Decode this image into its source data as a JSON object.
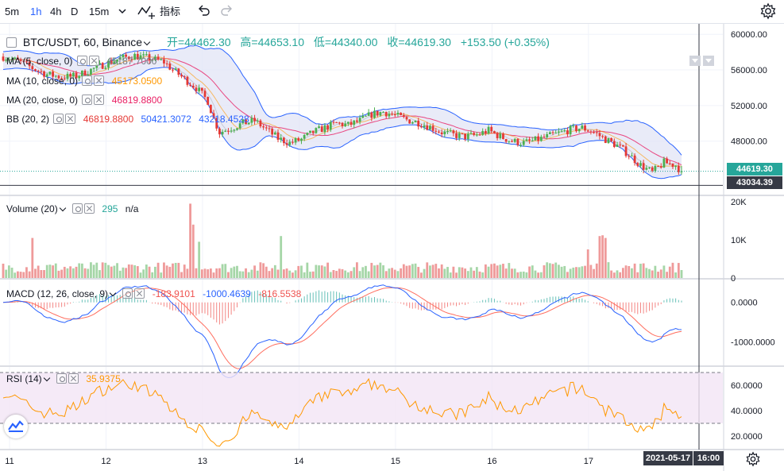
{
  "toolbar": {
    "intervals": [
      "5m",
      "1h",
      "4h",
      "D",
      "15m"
    ],
    "active_interval": "1h",
    "indicators_label": "指标"
  },
  "header": {
    "symbol": "BTC/USDT, 60, Binance",
    "open_label": "开=44462.30",
    "high_label": "高=44653.10",
    "low_label": "低=44340.00",
    "close_label": "收=44619.30",
    "change_label": "+153.50 (+0.35%)"
  },
  "legends": {
    "ma5": {
      "label": "MA (5, close, 0)",
      "value": "45187.7000",
      "color": "#787b86"
    },
    "ma10": {
      "label": "MA (10, close, 0)",
      "value": "45173.0500",
      "color": "#ff9800"
    },
    "ma20": {
      "label": "MA (20, close, 0)",
      "value": "46819.8800",
      "color": "#e91e63"
    },
    "bb": {
      "label": "BB (20, 2)",
      "basis": "46819.8800",
      "upper": "50421.3072",
      "lower": "43218.4528"
    },
    "volume": {
      "label": "Volume (20)",
      "value": "295",
      "extra": "n/a"
    },
    "macd": {
      "label": "MACD (12, 26, close, 9)",
      "hist": "-183.9101",
      "macd": "-1000.4639",
      "signal": "-816.5538"
    },
    "rsi": {
      "label": "RSI (14)",
      "value": "35.9375"
    }
  },
  "axes": {
    "price_ticks": [
      "60000.00",
      "56000.00",
      "52000.00",
      "48000.00"
    ],
    "volume_ticks": [
      "20K",
      "10K",
      "0"
    ],
    "macd_ticks": [
      "0.0000",
      "-1000.0000"
    ],
    "rsi_ticks": [
      "60.0000",
      "40.0000",
      "20.0000"
    ],
    "time_ticks": [
      "11",
      "12",
      "13",
      "14",
      "15",
      "16",
      "17"
    ]
  },
  "price_tags": {
    "last_price": "44619.30",
    "crosshair_price": "43034.39",
    "crosshair_date": "2021-05-17",
    "crosshair_time": "16:00"
  },
  "colors": {
    "up": "#26a69a",
    "down": "#ef5350",
    "up_candle": "#4caf50",
    "down_candle": "#e53935",
    "bb_line": "#2962ff",
    "bb_fill": "#e1e4f5",
    "macd_line": "#2962ff",
    "signal_line": "#ff6d5e",
    "rsi_line": "#ff9800",
    "rsi_band": "#f3e5f5"
  },
  "chart_data": {
    "type": "candlestick",
    "title": "BTC/USDT, 60, Binance",
    "price_range": [
      42000,
      61000
    ],
    "price_anchors": [
      [
        0,
        57500
      ],
      [
        5,
        57000
      ],
      [
        10,
        56200
      ],
      [
        15,
        55500
      ],
      [
        20,
        55200
      ],
      [
        25,
        55300
      ],
      [
        30,
        56000
      ],
      [
        35,
        56700
      ],
      [
        40,
        57300
      ],
      [
        45,
        57600
      ],
      [
        50,
        57300
      ],
      [
        55,
        56900
      ],
      [
        58,
        56000
      ],
      [
        62,
        55000
      ],
      [
        66,
        54000
      ],
      [
        70,
        52500
      ],
      [
        72,
        50500
      ],
      [
        74,
        49000
      ],
      [
        78,
        49500
      ],
      [
        82,
        50000
      ],
      [
        86,
        50300
      ],
      [
        90,
        49300
      ],
      [
        94,
        48300
      ],
      [
        98,
        47800
      ],
      [
        102,
        48200
      ],
      [
        106,
        49000
      ],
      [
        110,
        49500
      ],
      [
        114,
        50000
      ],
      [
        118,
        49800
      ],
      [
        122,
        50300
      ],
      [
        126,
        51000
      ],
      [
        130,
        51300
      ],
      [
        134,
        50900
      ],
      [
        138,
        50400
      ],
      [
        142,
        50100
      ],
      [
        146,
        49600
      ],
      [
        150,
        49000
      ],
      [
        154,
        48700
      ],
      [
        158,
        48500
      ],
      [
        162,
        48700
      ],
      [
        166,
        49200
      ],
      [
        170,
        48500
      ],
      [
        174,
        48000
      ],
      [
        178,
        47800
      ],
      [
        182,
        48100
      ],
      [
        186,
        48500
      ],
      [
        190,
        48900
      ],
      [
        194,
        49300
      ],
      [
        198,
        49500
      ],
      [
        202,
        49000
      ],
      [
        206,
        48200
      ],
      [
        210,
        47500
      ],
      [
        214,
        46500
      ],
      [
        218,
        45300
      ],
      [
        222,
        44500
      ],
      [
        226,
        45600
      ],
      [
        230,
        45300
      ],
      [
        232,
        44600
      ]
    ],
    "volume_range": [
      0,
      20000
    ],
    "volume_base": 2800,
    "volume_spikes": [
      [
        10,
        10500
      ],
      [
        64,
        19500
      ],
      [
        65,
        14000
      ],
      [
        67,
        9500
      ],
      [
        95,
        11000
      ],
      [
        204,
        11000
      ],
      [
        205,
        11200
      ],
      [
        206,
        10500
      ],
      [
        200,
        7500
      ]
    ],
    "macd_range": [
      -1600,
      600
    ],
    "rsi_range": [
      10,
      75
    ],
    "rsi_levels": [
      30,
      70
    ],
    "bar_count": 233,
    "last_close": 44619.3,
    "crosshair_price": 43034.39
  }
}
